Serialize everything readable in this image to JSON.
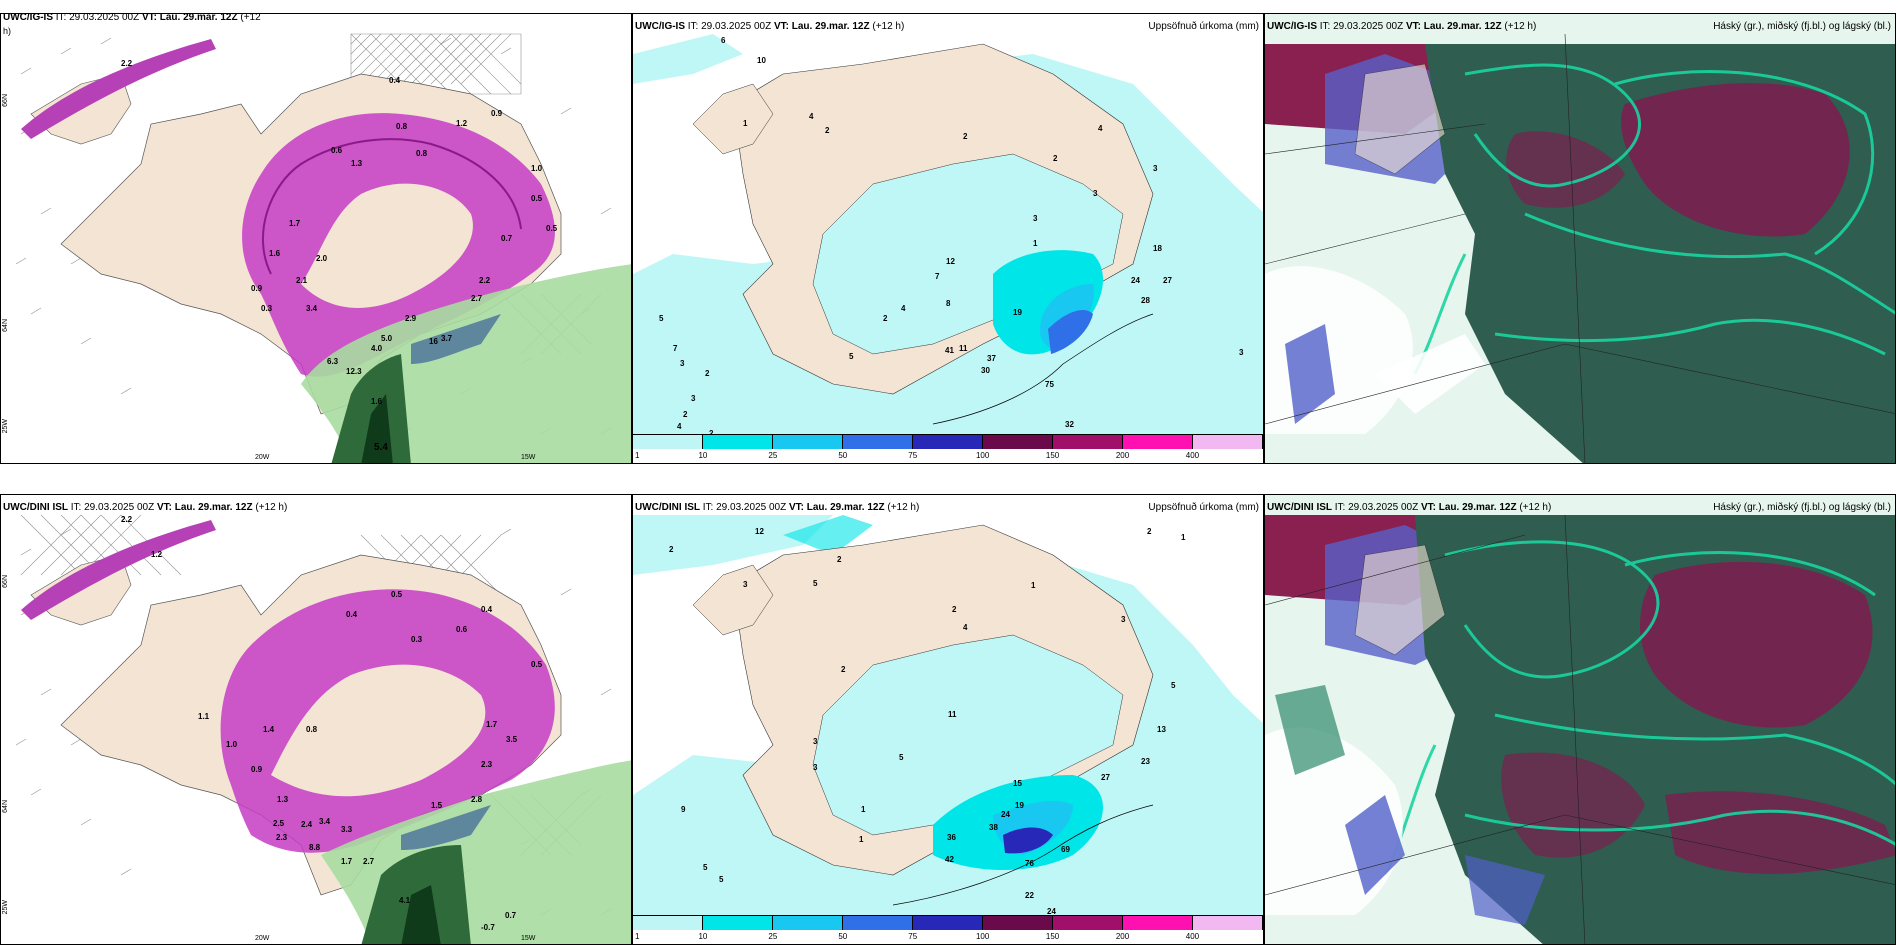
{
  "rows": [
    {
      "wind": {
        "title_model": "UWC/IG-IS",
        "title_it": "IT: 29.03.2025 00Z",
        "title_vt_label": "VT:",
        "title_vt": "Lau. 29.mar. 12Z",
        "title_lead": "(+12",
        "title_lead2": "h)",
        "lon_labels": [
          "20W",
          "15W",
          "25W"
        ],
        "lat_labels": [
          "66N",
          "64N"
        ],
        "values": [
          "2.2",
          "0.4",
          "1.2",
          "0.9",
          "0.8",
          "0.6",
          "0.5",
          "1.7",
          "2.0",
          "1.6",
          "2.1",
          "0.9",
          "3.4",
          "2.9",
          "5.0",
          "4.0",
          "12.3",
          "1.6",
          "16",
          "6.3",
          "3.7",
          "2.7",
          "2.2",
          "5.4",
          "0.7",
          "1.3",
          "0.8",
          "0.3",
          "0.5",
          "1.0"
        ]
      },
      "precip": {
        "title_model": "UWC/IG-IS",
        "title_it": "IT: 29.03.2025 00Z",
        "title_vt_label": "VT:",
        "title_vt": "Lau. 29.mar. 12Z",
        "title_lead": "(+12 h)",
        "title_right": "Uppsöfnuð úrkoma (mm)",
        "values": [
          "6",
          "10",
          "4",
          "2",
          "1",
          "2",
          "3",
          "4",
          "3",
          "2",
          "1",
          "12",
          "8",
          "7",
          "4",
          "2",
          "5",
          "3",
          "2",
          "19",
          "37",
          "30",
          "11",
          "75",
          "32",
          "28",
          "27",
          "3",
          "5",
          "7",
          "3",
          "2",
          "4",
          "2",
          "41",
          "24",
          "18",
          "3"
        ]
      },
      "cloud": {
        "title_model": "UWC/IG-IS",
        "title_it": "IT: 29.03.2025 00Z",
        "title_vt_label": "VT:",
        "title_vt": "Lau. 29.mar. 12Z",
        "title_lead": "(+12 h)",
        "title_right": "Háský (gr.), miðský (fj.bl.) og lágský (bl.)"
      }
    },
    {
      "wind": {
        "title_model": "UWC/DINI ISL",
        "title_it": "IT: 29.03.2025 00Z",
        "title_vt_label": "VT:",
        "title_vt": "Lau. 29.mar. 12Z",
        "title_lead": "(+12 h)",
        "title_lead2": "",
        "lon_labels": [
          "20W",
          "15W",
          "25W"
        ],
        "lat_labels": [
          "66N",
          "64N"
        ],
        "values": [
          "2.2",
          "1.2",
          "0.5",
          "0.4",
          "0.3",
          "0.6",
          "1.0",
          "0.9",
          "1.4",
          "1.3",
          "1.1",
          "2.5",
          "2.3",
          "3.4",
          "2.4",
          "3.3",
          "8.8",
          "2.7",
          "1.7",
          "4.1",
          "0.7",
          "-0.7",
          "1.5",
          "2.8",
          "3.5",
          "2.3",
          "1.7",
          "0.8",
          "0.4",
          "0.5"
        ]
      },
      "precip": {
        "title_model": "UWC/DINI ISL",
        "title_it": "IT: 29.03.2025 00Z",
        "title_vt_label": "VT:",
        "title_vt": "Lau. 29.mar. 12Z",
        "title_lead": "(+12 h)",
        "title_right": "Uppsöfnuð úrkoma (mm)",
        "values": [
          "12",
          "2",
          "2",
          "3",
          "5",
          "1",
          "2",
          "3",
          "4",
          "5",
          "11",
          "2",
          "3",
          "5",
          "3",
          "1",
          "9",
          "5",
          "1",
          "15",
          "19",
          "24",
          "38",
          "36",
          "42",
          "69",
          "76",
          "22",
          "24",
          "27",
          "23",
          "13",
          "2",
          "5",
          "1"
        ]
      },
      "cloud": {
        "title_model": "UWC/DINI ISL",
        "title_it": "IT: 29.03.2025 00Z",
        "title_vt_label": "VT:",
        "title_vt": "Lau. 29.mar. 12Z",
        "title_lead": "(+12 h)",
        "title_right": "Háský (gr.), miðský (fj.bl.) og lágský (bl.)"
      }
    }
  ],
  "precip_legend": {
    "labels": [
      "1",
      "10",
      "25",
      "50",
      "75",
      "100",
      "150",
      "200",
      "400"
    ],
    "colors": [
      "#bff5f5",
      "#00e5e8",
      "#18c8f0",
      "#2f70e8",
      "#2828b8",
      "#6a0a4a",
      "#a0106a",
      "#ff10b0",
      "#f2b8f2"
    ]
  },
  "colors": {
    "land": "#f3e4d4",
    "sea_precip": "#ffffff",
    "light_cyan": "#bff7f7",
    "magenta": "#c43cc4",
    "green_dark": "#2f5d4f",
    "cloud_maroon": "#7a1f4e"
  }
}
